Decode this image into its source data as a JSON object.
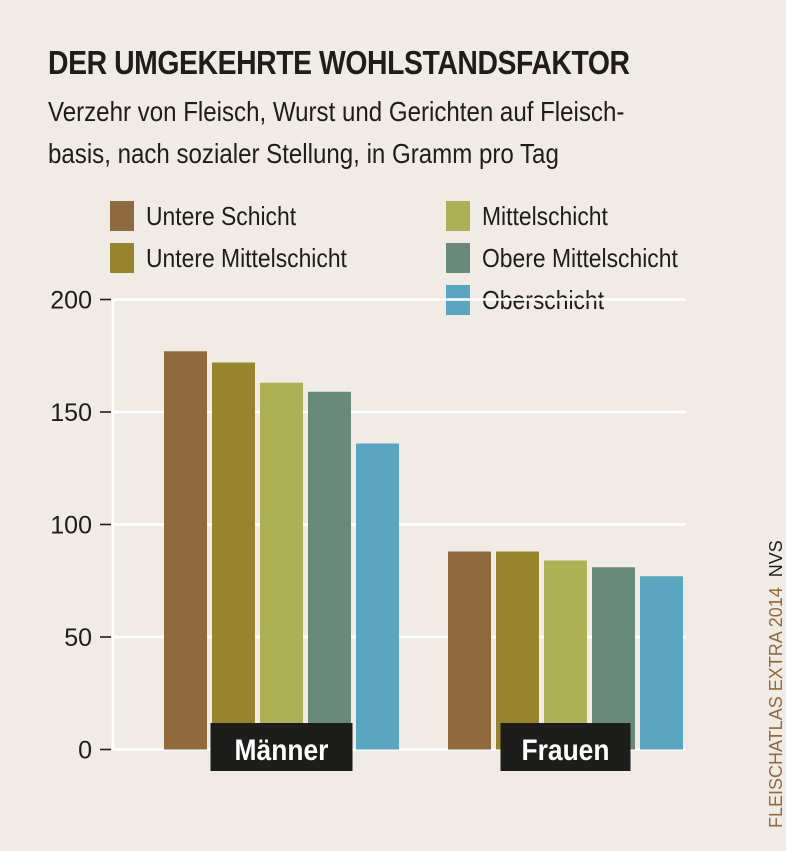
{
  "header": {
    "title": "DER UMGEKEHRTE WOHLSTANDSFAKTOR",
    "subtitle_line1": "Verzehr von Fleisch, Wurst und Gerichten auf Fleisch-",
    "subtitle_line2": "basis, nach sozialer Stellung, in Gramm pro Tag"
  },
  "source": {
    "publication": "FLEISCHATLAS EXTRA 2014",
    "data_source": "NVS"
  },
  "colors": {
    "background": "#f0ebe5",
    "gridline": "#ffffff",
    "axis_text": "#1d1d1b",
    "category_label_bg": "#1d1d1b",
    "category_label_text": "#ffffff",
    "source_text": "#8f6a3f"
  },
  "chart_data": {
    "type": "bar",
    "title": "DER UMGEKEHRTE WOHLSTANDSFAKTOR",
    "subtitle": "Verzehr von Fleisch, Wurst und Gerichten auf Fleischbasis, nach sozialer Stellung, in Gramm pro Tag",
    "xlabel": "",
    "ylabel": "Gramm pro Tag",
    "categories": [
      "Männer",
      "Frauen"
    ],
    "ylim": [
      0,
      200
    ],
    "yticks": [
      0,
      50,
      100,
      150,
      200
    ],
    "grid": true,
    "legend_position": "top",
    "series": [
      {
        "name": "Untere Schicht",
        "color": "#8f6a3f",
        "values": [
          177,
          88
        ]
      },
      {
        "name": "Untere Mittelschicht",
        "color": "#96842e",
        "values": [
          172,
          88
        ]
      },
      {
        "name": "Mittelschicht",
        "color": "#adb054",
        "values": [
          163,
          84
        ]
      },
      {
        "name": "Obere Mittelschicht",
        "color": "#68897c",
        "values": [
          159,
          81
        ]
      },
      {
        "name": "Oberschicht",
        "color": "#5aa6c0",
        "values": [
          136,
          77
        ]
      }
    ]
  }
}
